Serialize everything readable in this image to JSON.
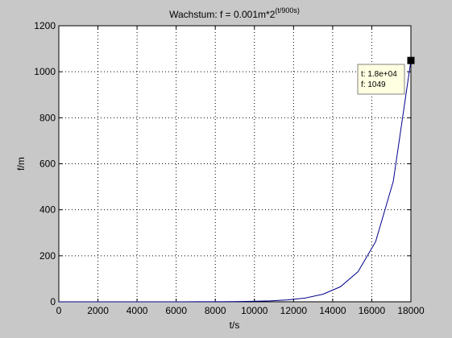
{
  "figure": {
    "background_color": "#c8c8c8",
    "axes_background_color": "#ffffff",
    "grid_color": "#000000"
  },
  "chart_data": {
    "type": "line",
    "title": "Wachstum: f = 0.001m*2",
    "title_superscript": "(t/900s)",
    "xlabel": "t/s",
    "ylabel": "f/m",
    "xlim": [
      0,
      18000
    ],
    "ylim": [
      0,
      1200
    ],
    "xticks": [
      0,
      2000,
      4000,
      6000,
      8000,
      10000,
      12000,
      14000,
      16000,
      18000
    ],
    "xtick_labels": [
      "0",
      "2000",
      "4000",
      "6000",
      "8000",
      "10000",
      "12000",
      "14000",
      "16000",
      "18000"
    ],
    "yticks": [
      0,
      200,
      400,
      600,
      800,
      1000,
      1200
    ],
    "ytick_labels": [
      "0",
      "200",
      "400",
      "600",
      "800",
      "1000",
      "1200"
    ],
    "grid": true,
    "grid_style": "dotted",
    "series": [
      {
        "color": "#00008b",
        "x": [
          0,
          900,
          1800,
          2700,
          3600,
          4500,
          5400,
          6300,
          7200,
          8100,
          9000,
          9900,
          10800,
          11700,
          12600,
          13500,
          14400,
          15300,
          16200,
          17100,
          18000
        ],
        "y": [
          0.001,
          0.002,
          0.004,
          0.008,
          0.016,
          0.032,
          0.064,
          0.128,
          0.256,
          0.512,
          1.024,
          2.048,
          4.096,
          8.192,
          16.384,
          32.768,
          65.536,
          131.072,
          262.144,
          524.288,
          1048.576
        ]
      }
    ],
    "datatip": {
      "x": 18000,
      "y": 1049,
      "line1": "t: 1.8e+04",
      "line2": "f: 1049",
      "box_color": "#ffffe1"
    }
  }
}
